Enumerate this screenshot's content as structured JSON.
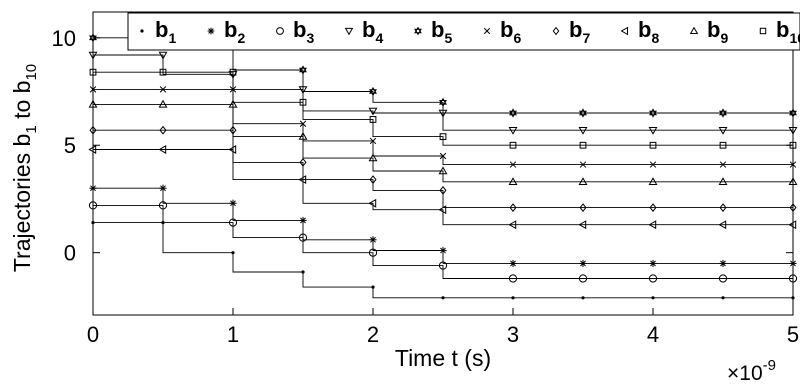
{
  "chart_data": {
    "type": "line",
    "title": "",
    "xlabel": "Time t (s)",
    "ylabel": "Trajectories b",
    "ylabel_parts": {
      "main": "Trajectories b",
      "sub1": "1",
      "mid": " to b",
      "sub2": "10"
    },
    "x_multiplier": "×10",
    "x_multiplier_exp": "-9",
    "xlim": [
      0,
      5
    ],
    "ylim": [
      -2.9,
      11.2
    ],
    "xticks": [
      0,
      1,
      2,
      3,
      4,
      5
    ],
    "xtick_labels": [
      "0",
      "1",
      "2",
      "3",
      "4",
      "5"
    ],
    "yticks": [
      0,
      5,
      10
    ],
    "ytick_labels": [
      "0",
      "5",
      "10"
    ],
    "grid": false,
    "legend_position": "top",
    "series": [
      {
        "name": "b",
        "sub": "1",
        "marker": "dot",
        "values": [
          1.4,
          0.0,
          -0.9,
          -1.6,
          -2.1,
          -2.1,
          -2.1,
          -2.1,
          -2.1,
          -2.1,
          -2.1
        ]
      },
      {
        "name": "b",
        "sub": "2",
        "marker": "star",
        "values": [
          3.0,
          2.3,
          1.5,
          0.6,
          0.1,
          -0.5,
          -0.5,
          -0.5,
          -0.5,
          -0.5,
          -0.5
        ]
      },
      {
        "name": "b",
        "sub": "3",
        "marker": "circle",
        "values": [
          2.2,
          1.4,
          0.7,
          0.0,
          -0.6,
          -1.2,
          -1.2,
          -1.2,
          -1.2,
          -1.2,
          -1.2
        ]
      },
      {
        "name": "b",
        "sub": "4",
        "marker": "triangle-down",
        "values": [
          9.2,
          8.3,
          7.6,
          6.6,
          6.5,
          5.7,
          5.7,
          5.7,
          5.7,
          5.7,
          5.7
        ]
      },
      {
        "name": "b",
        "sub": "5",
        "marker": "hexagram",
        "values": [
          10.0,
          9.9,
          8.5,
          7.5,
          7.0,
          6.5,
          6.5,
          6.5,
          6.5,
          6.5,
          6.5
        ]
      },
      {
        "name": "b",
        "sub": "6",
        "marker": "x",
        "values": [
          7.6,
          7.6,
          6.0,
          5.2,
          4.5,
          4.1,
          4.1,
          4.1,
          4.1,
          4.1,
          4.1
        ]
      },
      {
        "name": "b",
        "sub": "7",
        "marker": "diamond",
        "values": [
          5.7,
          5.7,
          4.2,
          3.4,
          2.9,
          2.1,
          2.1,
          2.1,
          2.1,
          2.1,
          2.1
        ]
      },
      {
        "name": "b",
        "sub": "8",
        "marker": "triangle-left",
        "values": [
          4.8,
          4.8,
          3.4,
          2.3,
          2.0,
          1.3,
          1.3,
          1.3,
          1.3,
          1.3,
          1.3
        ]
      },
      {
        "name": "b",
        "sub": "9",
        "marker": "triangle-up",
        "values": [
          6.9,
          6.9,
          5.4,
          4.4,
          3.8,
          3.3,
          3.3,
          3.3,
          3.3,
          3.3,
          3.3
        ]
      },
      {
        "name": "b",
        "sub": "10",
        "marker": "square",
        "values": [
          8.4,
          8.4,
          7.0,
          6.2,
          5.4,
          5.0,
          5.0,
          5.0,
          5.0,
          5.0,
          5.0
        ]
      }
    ],
    "x": [
      0,
      0.5,
      1.0,
      1.5,
      2.0,
      2.5,
      3.0,
      3.5,
      4.0,
      4.5,
      5.0
    ]
  }
}
